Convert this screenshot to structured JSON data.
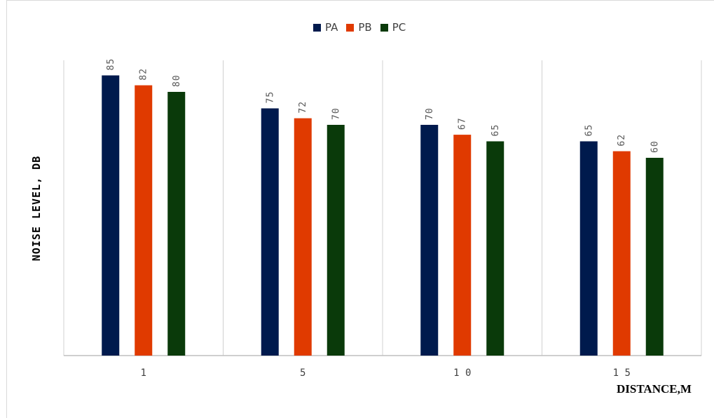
{
  "chart_data": {
    "type": "bar",
    "title": "",
    "xlabel": "DISTANCE,M",
    "ylabel": "NOISE LEVEL, DB",
    "categories": [
      "1",
      "5",
      "1 0",
      "1 5"
    ],
    "series": [
      {
        "name": "PA",
        "color": "#001a4d",
        "values": [
          85,
          75,
          70,
          65
        ]
      },
      {
        "name": "PB",
        "color": "#e03a00",
        "values": [
          82,
          72,
          67,
          62
        ]
      },
      {
        "name": "PC",
        "color": "#0a3a0a",
        "values": [
          80,
          70,
          65,
          60
        ]
      }
    ],
    "ylim": [
      0,
      85
    ],
    "grid": "vertical separators between categories",
    "legend_position": "top",
    "data_labels": true
  }
}
